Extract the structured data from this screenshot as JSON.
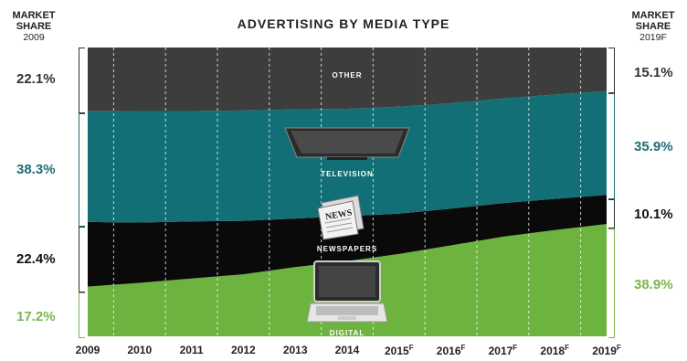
{
  "title": "ADVERTISING BY MEDIA TYPE",
  "left_header": {
    "line1": "MARKET",
    "line2": "SHARE",
    "line3": "2009"
  },
  "right_header": {
    "line1": "MARKET",
    "line2": "SHARE",
    "line3": "2019F"
  },
  "labels": {
    "other": "OTHER",
    "television": "TELEVISION",
    "newspapers": "NEWSPAPERS",
    "digital": "DIGITAL"
  },
  "left_shares": {
    "other": "22.1%",
    "television": "38.3%",
    "newspapers": "22.4%",
    "digital": "17.2%"
  },
  "right_shares": {
    "other": "15.1%",
    "television": "35.9%",
    "newspapers": "10.1%",
    "digital": "38.9%"
  },
  "colors": {
    "other": "#3d3d3d",
    "television": "#136f76",
    "newspapers": "#0a0a0a",
    "digital": "#6db33f",
    "tv_text": "#1e6e74",
    "digital_text": "#7ab648",
    "dark_text": "#333333"
  },
  "chart_data": {
    "type": "area",
    "stacked": true,
    "categories": [
      "2009",
      "2010",
      "2011",
      "2012",
      "2013",
      "2014",
      "2015F",
      "2016F",
      "2017F",
      "2018F",
      "2019F"
    ],
    "series": [
      {
        "name": "Digital",
        "values": [
          17.2,
          18.5,
          20.0,
          21.5,
          24.0,
          26.0,
          28.5,
          31.5,
          34.5,
          36.8,
          38.9
        ]
      },
      {
        "name": "Newspapers",
        "values": [
          22.4,
          20.9,
          19.8,
          18.5,
          16.8,
          15.6,
          14.0,
          12.7,
          11.6,
          10.8,
          10.1
        ]
      },
      {
        "name": "Television",
        "values": [
          38.3,
          38.6,
          38.2,
          38.2,
          37.8,
          37.2,
          37.0,
          36.5,
          36.2,
          36.1,
          35.9
        ]
      },
      {
        "name": "Other",
        "values": [
          22.1,
          22.0,
          22.0,
          21.8,
          21.4,
          21.2,
          20.5,
          19.3,
          17.7,
          16.3,
          15.1
        ]
      }
    ],
    "ylim": [
      0,
      100
    ]
  }
}
